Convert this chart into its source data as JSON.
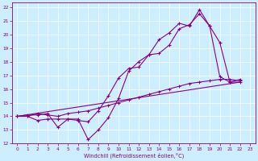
{
  "xlabel": "Windchill (Refroidissement éolien,°C)",
  "bg_color": "#cceeff",
  "line_color": "#880088",
  "xlim": [
    -0.5,
    23.5
  ],
  "ylim": [
    12,
    22.3
  ],
  "xticks": [
    0,
    1,
    2,
    3,
    4,
    5,
    6,
    7,
    8,
    9,
    10,
    11,
    12,
    13,
    14,
    15,
    16,
    17,
    18,
    19,
    20,
    21,
    22,
    23
  ],
  "yticks": [
    12,
    13,
    14,
    15,
    16,
    17,
    18,
    19,
    20,
    21,
    22
  ],
  "series": [
    {
      "x": [
        0,
        1,
        2,
        3,
        4,
        5,
        6,
        7,
        8,
        9,
        10,
        11,
        12,
        13,
        14,
        15,
        16,
        17,
        18,
        19,
        20,
        21,
        22
      ],
      "y": [
        14.0,
        14.1,
        14.1,
        14.2,
        13.2,
        13.8,
        13.7,
        13.6,
        14.4,
        15.5,
        16.8,
        17.5,
        17.6,
        18.5,
        19.6,
        20.1,
        20.8,
        20.6,
        21.8,
        20.6,
        16.9,
        16.5,
        16.5
      ]
    },
    {
      "x": [
        0,
        1,
        2,
        3,
        4,
        5,
        6,
        7,
        8,
        9,
        10,
        11,
        12,
        13,
        14,
        15,
        16,
        17,
        18,
        19,
        20,
        21,
        22
      ],
      "y": [
        14.0,
        14.0,
        13.7,
        13.8,
        13.8,
        13.8,
        13.8,
        12.3,
        13.0,
        13.9,
        15.3,
        17.3,
        18.0,
        18.5,
        18.6,
        19.2,
        20.4,
        20.7,
        21.5,
        20.6,
        19.4,
        16.5,
        16.7
      ]
    },
    {
      "x": [
        0,
        22
      ],
      "y": [
        14.0,
        16.5
      ]
    },
    {
      "x": [
        0,
        1,
        2,
        3,
        4,
        5,
        6,
        7,
        8,
        9,
        10,
        11,
        12,
        13,
        14,
        15,
        16,
        17,
        18,
        19,
        20,
        21,
        22
      ],
      "y": [
        14.0,
        14.0,
        14.2,
        14.1,
        14.0,
        14.2,
        14.3,
        14.4,
        14.6,
        14.8,
        15.0,
        15.2,
        15.4,
        15.6,
        15.8,
        16.0,
        16.2,
        16.4,
        16.5,
        16.6,
        16.7,
        16.7,
        16.6
      ]
    }
  ]
}
